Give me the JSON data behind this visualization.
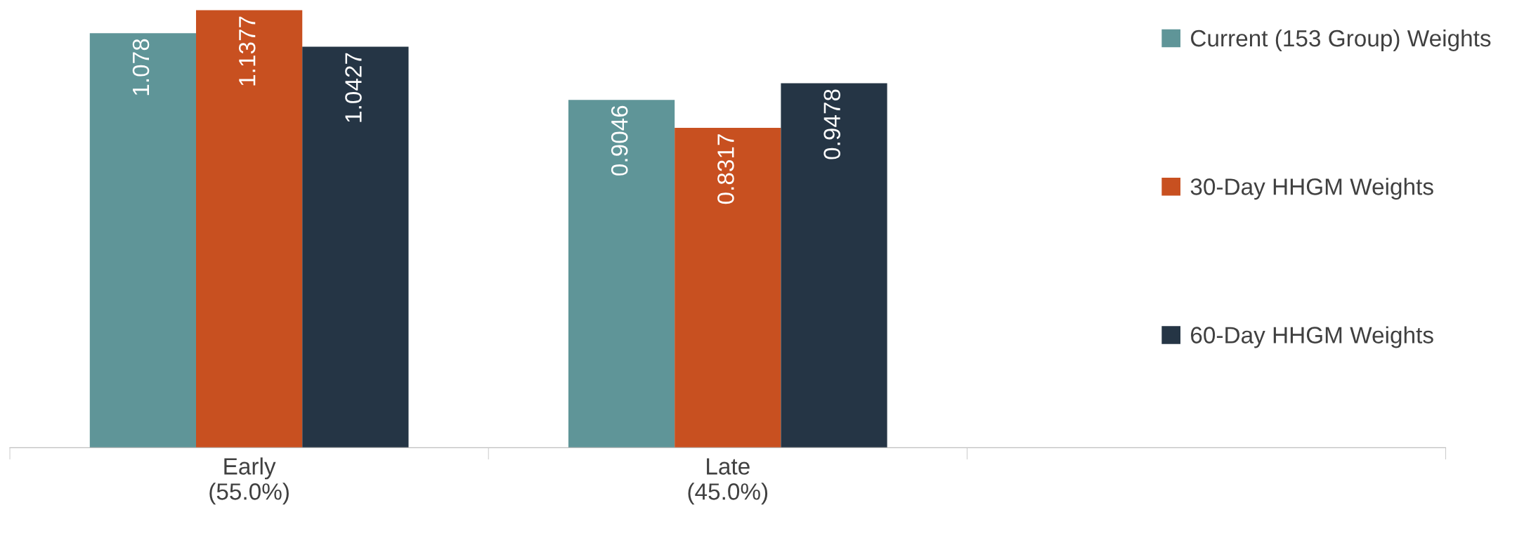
{
  "chart_data": {
    "type": "bar",
    "categories": [
      "Early\n(55.0%)",
      "Late\n(45.0%)",
      null
    ],
    "series": [
      {
        "name": "Current (153 Group) Weights",
        "color": "#5f9598",
        "values": [
          1.078,
          0.9046,
          null
        ]
      },
      {
        "name": "30-Day HHGM Weights",
        "color": "#c85020",
        "values": [
          1.1377,
          0.8317,
          null
        ]
      },
      {
        "name": "60-Day HHGM Weights",
        "color": "#253545",
        "values": [
          1.0427,
          0.9478,
          null
        ]
      }
    ],
    "data_labels": true,
    "legend": "right",
    "grid": false
  }
}
